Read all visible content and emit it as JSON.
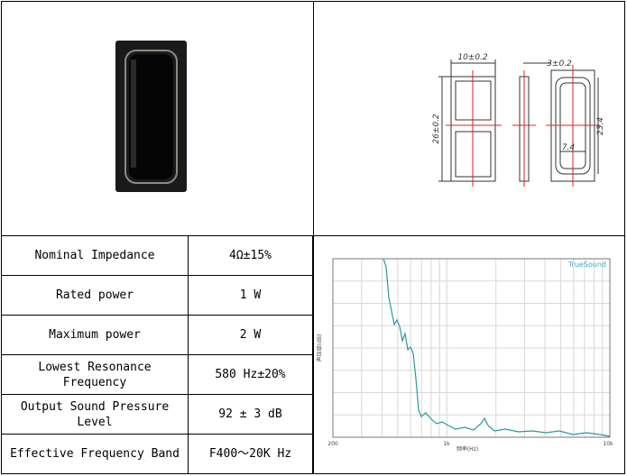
{
  "drawing": {
    "labels": [
      "10±0.2",
      "26±0.2",
      "3±0.2",
      "23.4",
      "7.4"
    ]
  },
  "specs": {
    "rows": [
      [
        "Nominal Impedance",
        "4Ω±15%"
      ],
      [
        "Rated power",
        "1 W"
      ],
      [
        "Maximum power",
        "2 W"
      ],
      [
        "Lowest Resonance Frequency",
        "580 Hz±20%"
      ],
      [
        "Output Sound Pressure Level",
        "92 ± 3 dB"
      ],
      [
        "Effective Frequency Band",
        "F400～20K Hz"
      ]
    ]
  },
  "response_chart": {
    "watermark": "TrueSound",
    "x_axis_label": "频率(Hz)",
    "y_axis_label": "声压级(dB)",
    "x_ticks": [
      "200",
      "1k",
      "10k"
    ]
  }
}
